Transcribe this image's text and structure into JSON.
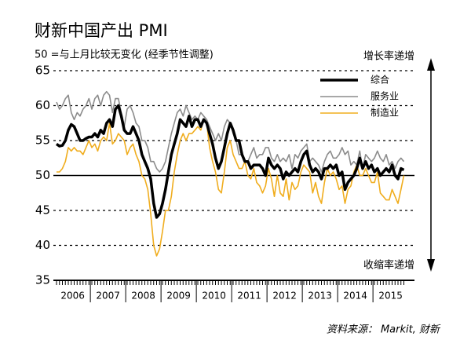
{
  "chart_data": {
    "type": "line",
    "title": "财新中国产出 PMI",
    "subtitle": "50 =与上月比较无变化 (经季节性调整)",
    "annotations": [
      "增长率递增",
      "收缩率递增"
    ],
    "source": "资料来源： Markit, 财新",
    "categories": [
      null,
      null,
      null,
      null,
      null,
      null,
      "2006",
      null,
      null,
      null,
      null,
      null,
      null,
      null,
      null,
      null,
      null,
      null,
      "2007",
      null,
      null,
      null,
      null,
      null,
      null,
      null,
      null,
      null,
      null,
      null,
      "2008",
      null,
      null,
      null,
      null,
      null,
      null,
      null,
      null,
      null,
      null,
      null,
      "2009",
      null,
      null,
      null,
      null,
      null,
      null,
      null,
      null,
      null,
      null,
      null,
      "2010",
      null,
      null,
      null,
      null,
      null,
      null,
      null,
      null,
      null,
      null,
      null,
      "2011",
      null,
      null,
      null,
      null,
      null,
      null,
      null,
      null,
      null,
      null,
      null,
      "2012",
      null,
      null,
      null,
      null,
      null,
      null,
      null,
      null,
      null,
      null,
      null,
      "2013",
      null,
      null,
      null,
      null,
      null,
      null,
      null,
      null,
      null,
      null,
      null,
      "2014",
      null,
      null,
      null,
      null,
      null,
      null,
      null,
      null,
      null,
      null,
      null,
      "2015",
      null,
      null,
      null,
      null
    ],
    "series": [
      {
        "name": "综合",
        "color": "#000000",
        "width": 3.5,
        "values": [
          54.5,
          54.2,
          54.3,
          55,
          56.5,
          57.3,
          57,
          56,
          55,
          55,
          55.3,
          55.5,
          55.5,
          56,
          55.5,
          56.5,
          56,
          57.5,
          58,
          57,
          59.5,
          60,
          58.5,
          56.5,
          56,
          56,
          57,
          56,
          55,
          53,
          52,
          51,
          49.5,
          46,
          44,
          44.5,
          46,
          48,
          50.5,
          53,
          54.5,
          56,
          58,
          57.5,
          57,
          58.5,
          57,
          58,
          58,
          57,
          58,
          57.5,
          56,
          54.5,
          52.5,
          51,
          52,
          54,
          56,
          57.5,
          56.5,
          55,
          55,
          53,
          52,
          52,
          51,
          51.5,
          51.5,
          51.5,
          51,
          50,
          52.5,
          51.5,
          51,
          51.5,
          51,
          49.5,
          50.5,
          50,
          50.5,
          51,
          50.5,
          52,
          53,
          53.5,
          51.5,
          50.5,
          51,
          50.5,
          49.5,
          51,
          51,
          51.5,
          51,
          51.5,
          50,
          50.5,
          48,
          49,
          49.5,
          50,
          51,
          52.5,
          51,
          52,
          51,
          51.5,
          50.5,
          51,
          50,
          50.5,
          51,
          50.5,
          51.5,
          50,
          49.5,
          51,
          50.8
        ]
      },
      {
        "name": "服务业",
        "color": "#8c8c8c",
        "width": 1.6,
        "values": [
          60.5,
          59.5,
          60,
          61,
          61.5,
          59,
          58,
          59,
          58.5,
          59.5,
          60,
          61,
          59.5,
          61,
          61.5,
          60,
          61.5,
          62,
          61.5,
          59,
          61,
          61,
          59,
          57,
          59.5,
          60,
          59,
          57.5,
          57,
          55,
          55,
          54,
          52,
          52,
          51,
          50.5,
          51,
          52,
          54,
          56,
          57.5,
          59,
          59.5,
          58.5,
          60,
          59,
          58,
          58.5,
          58,
          59,
          58.5,
          58,
          57,
          56,
          55,
          56,
          55,
          57,
          58,
          57.5,
          56,
          55,
          53,
          53,
          52,
          52,
          53,
          54,
          52.5,
          53,
          53,
          54,
          54,
          52.5,
          52,
          53,
          52,
          52.5,
          52,
          53,
          51,
          53,
          52.5,
          53.5,
          54,
          54.5,
          52,
          52.5,
          52,
          51.5,
          50.5,
          52,
          53,
          53.5,
          52.5,
          52.5,
          53,
          54,
          53,
          53.5,
          51.5,
          52,
          51.5,
          53.5,
          51,
          53,
          52.5,
          52,
          52.5,
          53.5,
          52.5,
          52,
          53,
          51.5,
          52,
          51,
          52,
          52.5,
          52
        ]
      },
      {
        "name": "制造业",
        "color": "#f0ad1e",
        "width": 1.6,
        "values": [
          50.5,
          50.5,
          51,
          52,
          54,
          53.5,
          54,
          53.5,
          53.5,
          53,
          54,
          55,
          54,
          54.5,
          53.5,
          55,
          55.5,
          55,
          57.5,
          54.5,
          55,
          56,
          55.5,
          55,
          53,
          54,
          54.5,
          53,
          52,
          50,
          49.5,
          48,
          44.5,
          40,
          38.5,
          39.5,
          42,
          45,
          45,
          47,
          50.5,
          53,
          55,
          56,
          55,
          56,
          56,
          56.5,
          57,
          56.5,
          58,
          57.5,
          54,
          52,
          50.5,
          48,
          47.5,
          50.5,
          54,
          55,
          53,
          52,
          51,
          51,
          52,
          50,
          49.5,
          51,
          49,
          48.5,
          47.5,
          48.5,
          51,
          49.5,
          47,
          50,
          47.5,
          47,
          49.5,
          46.5,
          49,
          48,
          48.5,
          50.5,
          51.5,
          51,
          50.5,
          47.5,
          49,
          47,
          46,
          49,
          51,
          50,
          50.5,
          49.5,
          48,
          48.5,
          46,
          48,
          48.5,
          50.5,
          51.5,
          50,
          50,
          51,
          50,
          49,
          49,
          50.5,
          47.5,
          47,
          46.5,
          46.5,
          48,
          47,
          46,
          48,
          50
        ]
      }
    ],
    "ylim": [
      35,
      65
    ],
    "yticks": [
      35,
      40,
      45,
      50,
      55,
      60,
      65
    ],
    "grid": true,
    "reference_line": 50,
    "legend": "upper right"
  }
}
